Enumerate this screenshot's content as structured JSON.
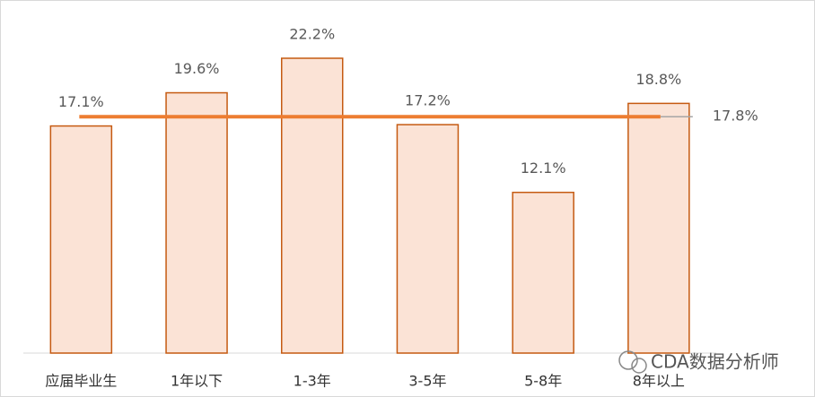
{
  "chart_data": {
    "type": "bar",
    "categories": [
      "应届毕业生",
      "1年以下",
      "1-3年",
      "3-5年",
      "5-8年",
      "8年以上"
    ],
    "values": [
      17.1,
      19.6,
      22.2,
      17.2,
      12.1,
      18.8
    ],
    "value_labels": [
      "17.1%",
      "19.6%",
      "22.2%",
      "17.2%",
      "12.1%",
      "18.8%"
    ],
    "color": "#fbe3d6",
    "edge_color": "#c55a11",
    "average_line": {
      "value": 17.8,
      "label": "17.8%",
      "color": "#ed7d31"
    },
    "watermark": "CDA数据分析师"
  }
}
